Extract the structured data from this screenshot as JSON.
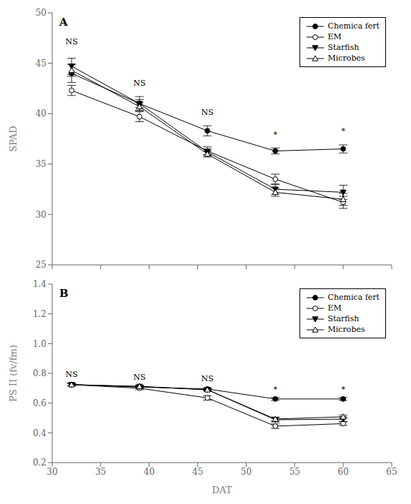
{
  "chart_data": [
    {
      "type": "line",
      "title": "A",
      "x": [
        32,
        39,
        46,
        53,
        60
      ],
      "xlim": [
        30,
        65
      ],
      "xticks": [
        30,
        35,
        40,
        45,
        50,
        55,
        60,
        65
      ],
      "ylim": [
        25,
        50
      ],
      "yticks": [
        25,
        30,
        35,
        40,
        45,
        50
      ],
      "ylabel": "SPAD",
      "tick_labels": "y",
      "grid": false,
      "legend": "upper right",
      "series": [
        {
          "name": "Chemica fert",
          "color": "#000000",
          "marker": "circle",
          "values": [
            44.0,
            41.0,
            38.3,
            36.3,
            36.5
          ],
          "err": [
            0.9,
            0.7,
            0.5,
            0.3,
            0.4
          ]
        },
        {
          "name": "EM",
          "color": "#000000",
          "marker": "open_circle",
          "values": [
            42.3,
            39.7,
            36.3,
            33.5,
            31.2
          ],
          "err": [
            0.5,
            0.5,
            0.4,
            0.5,
            0.6
          ]
        },
        {
          "name": "Starfish",
          "color": "#000000",
          "marker": "triangle_down",
          "values": [
            44.7,
            41.0,
            36.2,
            32.5,
            32.2
          ],
          "err": [
            0.8,
            0.4,
            0.3,
            0.5,
            0.7
          ]
        },
        {
          "name": "Microbes",
          "color": "#000000",
          "marker": "open_triangle_up",
          "values": [
            44.3,
            40.7,
            36.0,
            32.2,
            31.5
          ],
          "err": [
            0.6,
            0.4,
            0.3,
            0.4,
            0.6
          ]
        }
      ],
      "annotations": [
        {
          "x": 32,
          "y": 46.5,
          "text": "NS"
        },
        {
          "x": 39,
          "y": 42.4,
          "text": "NS"
        },
        {
          "x": 46,
          "y": 39.5,
          "text": "NS"
        },
        {
          "x": 53,
          "y": 37.3,
          "text": "*"
        },
        {
          "x": 60,
          "y": 37.7,
          "text": "*"
        }
      ]
    },
    {
      "type": "line",
      "title": "B",
      "x": [
        32,
        39,
        46,
        53,
        60
      ],
      "xlim": [
        30,
        65
      ],
      "xticks": [
        30,
        35,
        40,
        45,
        50,
        55,
        60,
        65
      ],
      "xlabel": "DAT",
      "ylim": [
        0.2,
        1.4
      ],
      "yticks": [
        0.2,
        0.4,
        0.6,
        0.8,
        {
          "value": 1,
          "label": "1.0"
        },
        1.2,
        1.4
      ],
      "ylabel": "PS II (fv/fm)",
      "grid": false,
      "legend": "upper right",
      "series": [
        {
          "name": "Chemica fert",
          "color": "#000000",
          "marker": "circle",
          "values": [
            0.724,
            0.708,
            0.695,
            0.628,
            0.628
          ],
          "err": [
            0.008,
            0.008,
            0.008,
            0.01,
            0.01
          ]
        },
        {
          "name": "EM",
          "color": "#000000",
          "marker": "open_circle",
          "values": [
            0.724,
            0.7,
            0.635,
            0.445,
            0.462
          ],
          "err": [
            0.008,
            0.01,
            0.015,
            0.015,
            0.012
          ]
        },
        {
          "name": "Starfish",
          "color": "#000000",
          "marker": "triangle_down",
          "values": [
            0.724,
            0.712,
            0.69,
            0.488,
            0.492
          ],
          "err": [
            0.008,
            0.008,
            0.008,
            0.015,
            0.015
          ]
        },
        {
          "name": "Microbes",
          "color": "#000000",
          "marker": "open_triangle_up",
          "values": [
            0.724,
            0.712,
            0.69,
            0.493,
            0.508
          ],
          "err": [
            0.008,
            0.008,
            0.008,
            0.013,
            0.012
          ]
        }
      ],
      "annotations": [
        {
          "x": 32,
          "y": 0.75,
          "text": "NS"
        },
        {
          "x": 39,
          "y": 0.735,
          "text": "NS"
        },
        {
          "x": 46,
          "y": 0.722,
          "text": "NS"
        },
        {
          "x": 53,
          "y": 0.652,
          "text": "*"
        },
        {
          "x": 60,
          "y": 0.65,
          "text": "*"
        }
      ]
    }
  ]
}
